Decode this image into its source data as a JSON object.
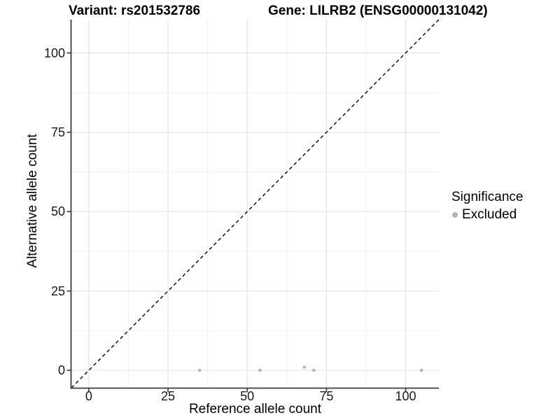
{
  "chart_data": {
    "type": "scatter",
    "titles": {
      "left": "Variant: rs201532786",
      "right": "Gene: LILRB2 (ENSG00000131042)"
    },
    "xlabel": "Reference allele count",
    "ylabel": "Alternative allele count",
    "xlim": [
      -5.5,
      110.5
    ],
    "ylim": [
      -5.5,
      110.5
    ],
    "x_ticks": [
      0,
      25,
      50,
      75,
      100
    ],
    "y_ticks": [
      0,
      25,
      50,
      75,
      100
    ],
    "x_minor_ticks": [
      12.5,
      37.5,
      62.5,
      87.5
    ],
    "y_minor_ticks": [
      12.5,
      37.5,
      62.5,
      87.5
    ],
    "grid": "major+minor",
    "reference_line": {
      "kind": "identity y=x",
      "from": [
        -5.5,
        -5.5
      ],
      "to": [
        110.5,
        110.5
      ],
      "style": "dashed",
      "color": "#000000"
    },
    "series": [
      {
        "name": "Excluded",
        "marker": "circle",
        "color": "#b5b5b5",
        "points": [
          {
            "x": 35,
            "y": 0
          },
          {
            "x": 54,
            "y": 0
          },
          {
            "x": 68,
            "y": 1
          },
          {
            "x": 71,
            "y": 0
          },
          {
            "x": 105,
            "y": 0
          }
        ]
      }
    ],
    "legend": {
      "title": "Significance",
      "position": "right",
      "items": [
        {
          "label": "Excluded",
          "color": "#b5b5b5"
        }
      ]
    },
    "style": {
      "background": "#ffffff",
      "grid_major_color": "#e4e4e4",
      "grid_minor_color": "#f1f1f1",
      "axis_line_color": "#3c3c3c",
      "tick_color": "#3c3c3c",
      "point_radius": 2.3,
      "text_color": "#000000"
    }
  }
}
